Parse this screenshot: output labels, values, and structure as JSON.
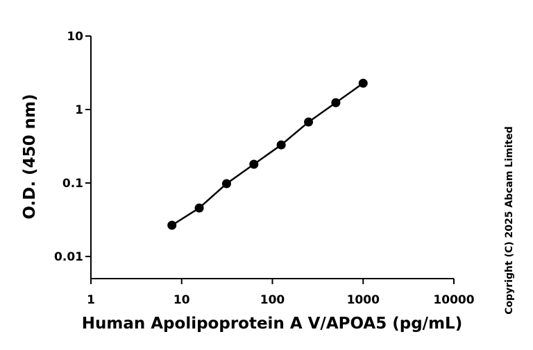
{
  "chart_data": {
    "type": "line",
    "x_label": "Human Apolipoprotein A V/APOA5 (pg/mL)",
    "y_label": "O.D. (450 nm)",
    "copyright": "Copyright (C) 2025 Abcam Limited",
    "log_x": true,
    "log_y": true,
    "marker": "circle",
    "x": [
      7.8125,
      15.625,
      31.25,
      62.5,
      125,
      250,
      500,
      1000
    ],
    "series": [
      {
        "color": "#000000",
        "values": [
          0.0266,
          0.0457,
          0.098,
          0.18,
          0.33,
          0.676,
          1.24,
          2.28
        ]
      }
    ],
    "xlim": [
      1,
      10000
    ],
    "xticks": [
      1,
      10,
      100,
      1000,
      10000
    ],
    "ylim": [
      0.005,
      10
    ],
    "yticks": [
      0.01,
      0.1,
      1,
      10
    ]
  }
}
